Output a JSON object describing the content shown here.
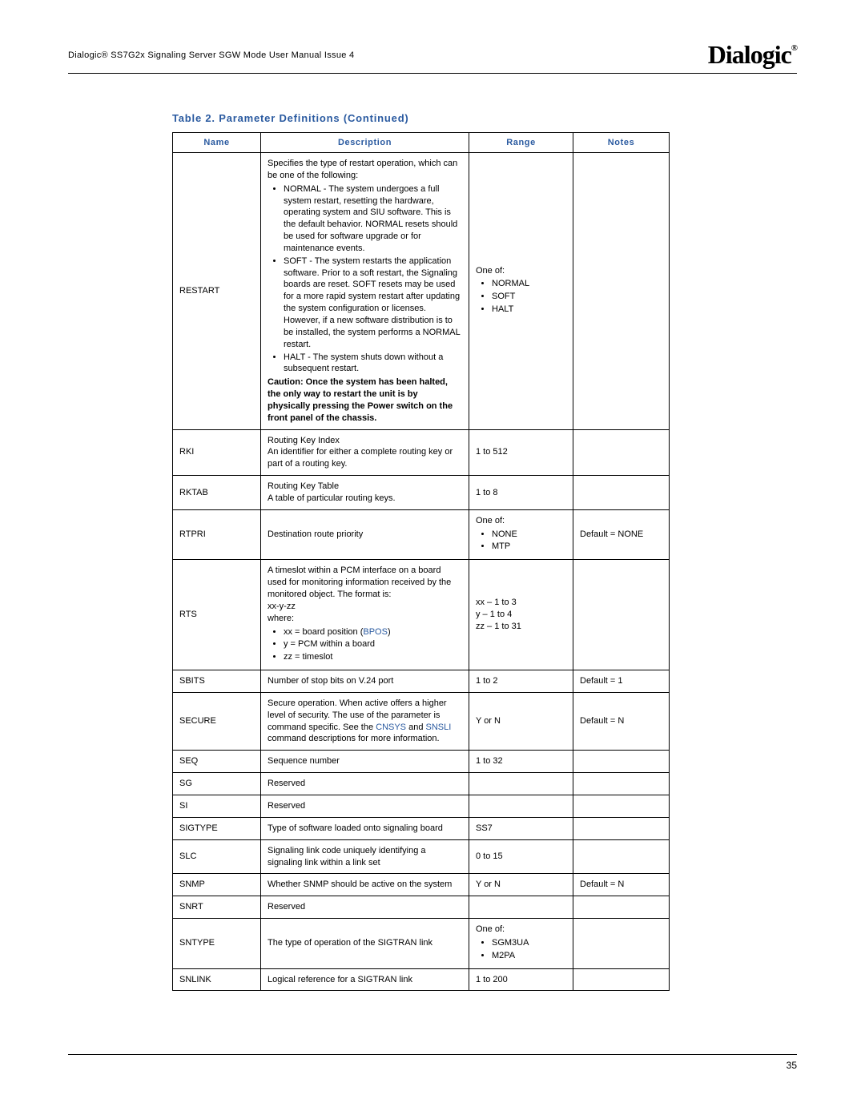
{
  "header": {
    "left": "Dialogic® SS7G2x Signaling Server SGW Mode User Manual Issue 4",
    "logo_text": "Dialogic",
    "logo_reg": "®"
  },
  "table_title": "Table 2. Parameter Definitions (Continued)",
  "columns": {
    "name": "Name",
    "desc": "Description",
    "range": "Range",
    "notes": "Notes"
  },
  "rows": {
    "restart": {
      "name": "RESTART",
      "desc_intro": "Specifies the type of restart operation, which can be one of the following:",
      "bullets": [
        "NORMAL - The system undergoes a full system restart, resetting the hardware, operating system and SIU software. This is the default behavior. NORMAL resets should be used for software upgrade or for maintenance events.",
        "SOFT - The system restarts the application software. Prior to a soft restart, the Signaling boards are reset. SOFT resets may be used for a more rapid system restart after updating the system configuration or licenses. However, if a new software distribution is to be installed, the system performs a NORMAL restart.",
        "HALT - The system shuts down without a subsequent restart."
      ],
      "caution_label": "Caution",
      "caution_text": ": Once the system has been halted, the only way to restart the unit is by physically pressing the Power switch on the front panel of the chassis.",
      "range_intro": "One of:",
      "range_items": [
        "NORMAL",
        "SOFT",
        "HALT"
      ],
      "notes": ""
    },
    "rki": {
      "name": "RKI",
      "desc": "Routing Key Index\nAn identifier for either a complete routing key or part of a routing key.",
      "range": "1 to 512",
      "notes": ""
    },
    "rktab": {
      "name": "RKTAB",
      "desc": "Routing Key Table\nA table of particular routing keys.",
      "range": "1 to 8",
      "notes": ""
    },
    "rtpri": {
      "name": "RTPRI",
      "desc": "Destination route priority",
      "range_intro": "One of:",
      "range_items": [
        "NONE",
        "MTP"
      ],
      "notes": "Default = NONE"
    },
    "rts": {
      "name": "RTS",
      "desc_intro": "A timeslot within a PCM interface on a board used for monitoring information received by the monitored object. The format is:",
      "fmt": "xx-y-zz",
      "where": "where:",
      "b1a": "xx = board position (",
      "b1link": "BPOS",
      "b1b": ")",
      "b2": "y = PCM within a board",
      "b3": "zz = timeslot",
      "range1": "xx – 1 to 3",
      "range2": "y – 1 to 4",
      "range3": "zz – 1 to 31",
      "notes": ""
    },
    "sbits": {
      "name": "SBITS",
      "desc": "Number of stop bits on V.24 port",
      "range": "1 to 2",
      "notes": "Default = 1"
    },
    "secure": {
      "name": "SECURE",
      "d1": "Secure operation. When active offers a higher level of security. The use of the parameter is command specific. See the ",
      "l1": "CNSYS",
      "d2": " and ",
      "l2": "SNSLI",
      "d3": " command descriptions for more information.",
      "range": "Y or N",
      "notes": "Default = N"
    },
    "seq": {
      "name": "SEQ",
      "desc": "Sequence number",
      "range": "1 to 32",
      "notes": ""
    },
    "sg": {
      "name": "SG",
      "desc": "Reserved",
      "range": "",
      "notes": ""
    },
    "si": {
      "name": "SI",
      "desc": "Reserved",
      "range": "",
      "notes": ""
    },
    "sigtype": {
      "name": "SIGTYPE",
      "desc": "Type of software loaded onto signaling board",
      "range": "SS7",
      "notes": ""
    },
    "slc": {
      "name": "SLC",
      "desc": "Signaling link code uniquely identifying a signaling link within a link set",
      "range": "0 to 15",
      "notes": ""
    },
    "snmp": {
      "name": "SNMP",
      "desc": "Whether SNMP should be active on the system",
      "range": "Y or N",
      "notes": "Default = N"
    },
    "snrt": {
      "name": "SNRT",
      "desc": "Reserved",
      "range": "",
      "notes": ""
    },
    "sntype": {
      "name": "SNTYPE",
      "desc": "The type of operation of the SIGTRAN link",
      "range_intro": "One of:",
      "range_items": [
        "SGM3UA",
        "M2PA"
      ],
      "notes": ""
    },
    "snlink": {
      "name": "SNLINK",
      "desc": "Logical reference for a SIGTRAN link",
      "range": "1 to 200",
      "notes": ""
    }
  },
  "page_number": "35"
}
